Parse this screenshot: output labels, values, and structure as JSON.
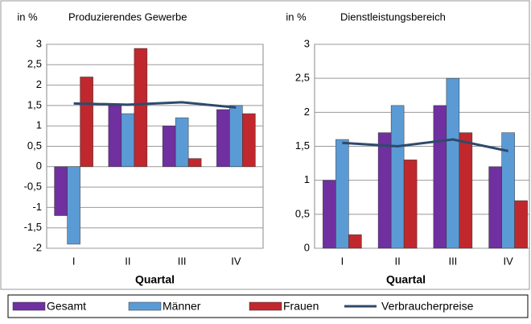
{
  "chart_data": [
    {
      "type": "bar",
      "title": "Produzierendes Gewerbe",
      "y_label": "in %",
      "x_label": "Quartal",
      "categories": [
        "I",
        "II",
        "III",
        "IV"
      ],
      "series": [
        {
          "name": "Gesamt",
          "color": "#7030a0",
          "values": [
            -1.2,
            1.5,
            1.0,
            1.4
          ]
        },
        {
          "name": "Männer",
          "color": "#5b9bd5",
          "values": [
            -1.9,
            1.3,
            1.2,
            1.5
          ]
        },
        {
          "name": "Frauen",
          "color": "#c0282d",
          "values": [
            2.2,
            2.9,
            0.2,
            1.3
          ]
        },
        {
          "name": "Verbraucherpreise",
          "type": "line",
          "color": "#2e4a6b",
          "values": [
            1.55,
            1.52,
            1.58,
            1.45
          ]
        }
      ],
      "ylim": [
        -2,
        3
      ],
      "yticks": [
        {
          "value": -2,
          "label": "-2"
        },
        {
          "value": -1.5,
          "label": "-1,5"
        },
        {
          "value": -1,
          "label": "-1"
        },
        {
          "value": -0.5,
          "label": "-0,5"
        },
        0,
        {
          "value": 0.5,
          "label": "0,5"
        },
        1,
        {
          "value": 1.5,
          "label": "1,5"
        },
        2,
        {
          "value": 2.5,
          "label": "2,5"
        },
        3
      ],
      "grid": true
    },
    {
      "type": "bar",
      "title": "Dienstleistungsbereich",
      "y_label": "in %",
      "x_label": "Quartal",
      "categories": [
        "I",
        "II",
        "III",
        "IV"
      ],
      "series": [
        {
          "color": "#7030a0",
          "values": [
            1.0,
            1.7,
            2.1,
            1.2
          ]
        },
        {
          "color": "#5b9bd5",
          "values": [
            1.6,
            2.1,
            2.5,
            1.7
          ]
        },
        {
          "color": "#c0282d",
          "values": [
            0.2,
            1.3,
            1.7,
            0.7
          ]
        },
        {
          "type": "line",
          "color": "#2e4a6b",
          "values": [
            1.55,
            1.5,
            1.6,
            1.43
          ]
        }
      ],
      "ylim": [
        0,
        3
      ],
      "yticks": [
        0,
        {
          "value": 0.5,
          "label": "0,5"
        },
        1,
        {
          "value": 1.5,
          "label": "1,5"
        },
        2,
        {
          "value": 2.5,
          "label": "2,5"
        },
        3
      ],
      "grid": true
    }
  ]
}
